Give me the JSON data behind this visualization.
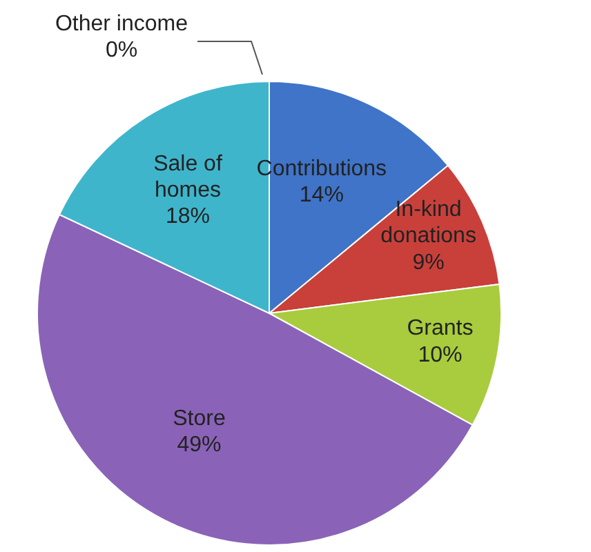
{
  "chart_data": {
    "type": "pie",
    "categories": [
      "Contributions",
      "In-kind donations",
      "Grants",
      "Store",
      "Sale of homes",
      "Other income"
    ],
    "values": [
      14,
      9,
      10,
      49,
      18,
      0
    ],
    "value_labels": [
      "14%",
      "9%",
      "10%",
      "49%",
      "18%",
      "0%"
    ],
    "colors": [
      "#3f74c8",
      "#c9403a",
      "#a8cc3e",
      "#8a63b8",
      "#3fb5cc",
      "#f79646"
    ]
  }
}
